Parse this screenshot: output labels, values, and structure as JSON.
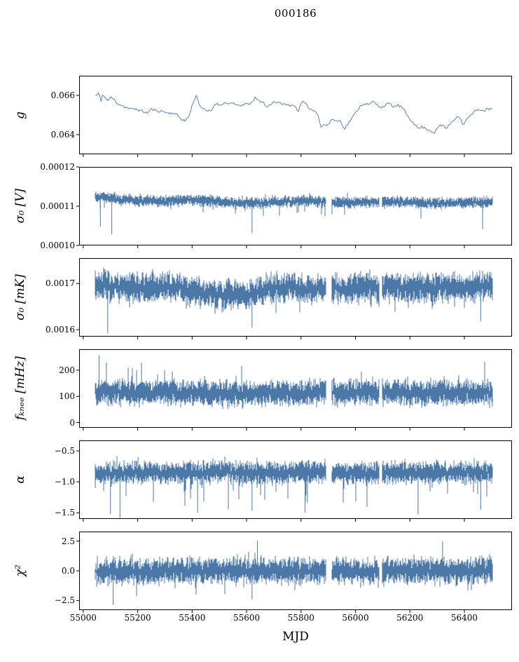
{
  "chart_data": {
    "type": "line",
    "title": "000186",
    "xlabel": "MJD",
    "line_color": "#4c78a8",
    "frame_color": "#000000",
    "grid": false,
    "legend": "none",
    "xlim": [
      54985,
      56575
    ],
    "data_range": [
      55045,
      56505
    ],
    "gaps": [
      [
        55893,
        55912
      ],
      [
        56088,
        56098
      ]
    ],
    "xticks": [
      {
        "v": 55000,
        "label": "55000"
      },
      {
        "v": 55200,
        "label": "55200"
      },
      {
        "v": 55400,
        "label": "55400"
      },
      {
        "v": 55600,
        "label": "55600"
      },
      {
        "v": 55800,
        "label": "55800"
      },
      {
        "v": 56000,
        "label": "56000"
      },
      {
        "v": 56200,
        "label": "56200"
      },
      {
        "v": 56400,
        "label": "56400"
      }
    ],
    "panels": [
      {
        "name": "g",
        "ylabel": "g",
        "style": "line",
        "ylim": [
          0.063,
          0.067
        ],
        "yticks": [
          {
            "v": 0.064,
            "label": "0.064"
          },
          {
            "v": 0.066,
            "label": "0.066"
          }
        ],
        "seed": 11,
        "jitter": 6e-05,
        "points": [
          [
            55052,
            0.066
          ],
          [
            55058,
            0.0662
          ],
          [
            55065,
            0.0656
          ],
          [
            55072,
            0.0661
          ],
          [
            55080,
            0.0659
          ],
          [
            55090,
            0.0657
          ],
          [
            55100,
            0.0659
          ],
          [
            55112,
            0.0658
          ],
          [
            55125,
            0.0656
          ],
          [
            55140,
            0.0655
          ],
          [
            55155,
            0.0654
          ],
          [
            55175,
            0.0653
          ],
          [
            55195,
            0.0653
          ],
          [
            55215,
            0.0652
          ],
          [
            55235,
            0.0651
          ],
          [
            55250,
            0.0653
          ],
          [
            55270,
            0.0652
          ],
          [
            55290,
            0.0652
          ],
          [
            55310,
            0.0651
          ],
          [
            55330,
            0.0651
          ],
          [
            55345,
            0.065
          ],
          [
            55360,
            0.0648
          ],
          [
            55375,
            0.0647
          ],
          [
            55390,
            0.065
          ],
          [
            55405,
            0.0657
          ],
          [
            55415,
            0.066
          ],
          [
            55428,
            0.0655
          ],
          [
            55440,
            0.0653
          ],
          [
            55455,
            0.0652
          ],
          [
            55470,
            0.0652
          ],
          [
            55485,
            0.0656
          ],
          [
            55500,
            0.0655
          ],
          [
            55515,
            0.0656
          ],
          [
            55530,
            0.0656
          ],
          [
            55545,
            0.0656
          ],
          [
            55560,
            0.0655
          ],
          [
            55575,
            0.0655
          ],
          [
            55590,
            0.0655
          ],
          [
            55605,
            0.0656
          ],
          [
            55620,
            0.0656
          ],
          [
            55633,
            0.0659
          ],
          [
            55645,
            0.0657
          ],
          [
            55660,
            0.0657
          ],
          [
            55672,
            0.0654
          ],
          [
            55685,
            0.0655
          ],
          [
            55700,
            0.0657
          ],
          [
            55715,
            0.0656
          ],
          [
            55730,
            0.0656
          ],
          [
            55745,
            0.0655
          ],
          [
            55760,
            0.0655
          ],
          [
            55775,
            0.0655
          ],
          [
            55790,
            0.0652
          ],
          [
            55805,
            0.0657
          ],
          [
            55820,
            0.0655
          ],
          [
            55835,
            0.0653
          ],
          [
            55850,
            0.0652
          ],
          [
            55862,
            0.0651
          ],
          [
            55872,
            0.0644
          ],
          [
            55885,
            0.0645
          ],
          [
            55900,
            0.0645
          ],
          [
            55915,
            0.0648
          ],
          [
            55930,
            0.0647
          ],
          [
            55945,
            0.0647
          ],
          [
            55960,
            0.0643
          ],
          [
            55975,
            0.0646
          ],
          [
            55990,
            0.0649
          ],
          [
            56005,
            0.0652
          ],
          [
            56020,
            0.0655
          ],
          [
            56035,
            0.0656
          ],
          [
            56050,
            0.0655
          ],
          [
            56065,
            0.0657
          ],
          [
            56080,
            0.0655
          ],
          [
            56095,
            0.0654
          ],
          [
            56110,
            0.0655
          ],
          [
            56125,
            0.0656
          ],
          [
            56140,
            0.0654
          ],
          [
            56155,
            0.0655
          ],
          [
            56170,
            0.0654
          ],
          [
            56185,
            0.0651
          ],
          [
            56200,
            0.0648
          ],
          [
            56215,
            0.0646
          ],
          [
            56230,
            0.0643
          ],
          [
            56245,
            0.0644
          ],
          [
            56260,
            0.0643
          ],
          [
            56275,
            0.0642
          ],
          [
            56290,
            0.0641
          ],
          [
            56305,
            0.0644
          ],
          [
            56320,
            0.0645
          ],
          [
            56335,
            0.0643
          ],
          [
            56350,
            0.0646
          ],
          [
            56365,
            0.0648
          ],
          [
            56380,
            0.065
          ],
          [
            56395,
            0.0645
          ],
          [
            56410,
            0.0648
          ],
          [
            56425,
            0.065
          ],
          [
            56440,
            0.0652
          ],
          [
            56455,
            0.0653
          ],
          [
            56470,
            0.0652
          ],
          [
            56485,
            0.0653
          ],
          [
            56500,
            0.0653
          ]
        ]
      },
      {
        "name": "sigma0_V",
        "ylabel": "σ₀ [V]",
        "style": "band",
        "ylim": [
          0.0001,
          0.00012
        ],
        "yticks": [
          {
            "v": 0.0001,
            "label": "0.00010"
          },
          {
            "v": 0.00011,
            "label": "0.00011"
          },
          {
            "v": 0.00012,
            "label": "0.00012"
          }
        ],
        "seed": 22,
        "half_amp": 1.4e-06,
        "tail_prob": 0.06,
        "tail_up": 1e-06,
        "tail_down": 2.8e-06,
        "baseline": [
          [
            55045,
            0.0001125
          ],
          [
            55120,
            0.0001118
          ],
          [
            55200,
            0.0001114
          ],
          [
            55300,
            0.0001112
          ],
          [
            55380,
            0.0001116
          ],
          [
            55470,
            0.0001113
          ],
          [
            55550,
            0.0001108
          ],
          [
            55650,
            0.0001108
          ],
          [
            55750,
            0.0001113
          ],
          [
            55850,
            0.0001114
          ],
          [
            55900,
            0.0001108
          ],
          [
            56000,
            0.0001109
          ],
          [
            56100,
            0.0001112
          ],
          [
            56200,
            0.000111
          ],
          [
            56300,
            0.0001107
          ],
          [
            56400,
            0.0001109
          ],
          [
            56505,
            0.000111
          ]
        ],
        "spikes": [
          [
            55063,
            0.0001048
          ],
          [
            55105,
            0.0001028
          ],
          [
            55620,
            0.0001032
          ],
          [
            56467,
            0.0001042
          ]
        ]
      },
      {
        "name": "sigma0_mK",
        "ylabel": "σ₀ [mK]",
        "style": "band",
        "ylim": [
          0.001585,
          0.001755
        ],
        "yticks": [
          {
            "v": 0.0016,
            "label": "0.0016"
          },
          {
            "v": 0.0017,
            "label": "0.0017"
          }
        ],
        "seed": 33,
        "half_amp": 3e-05,
        "tail_prob": 0.06,
        "tail_up": 1.6e-05,
        "tail_down": 2.8e-05,
        "baseline": [
          [
            55045,
            0.001695
          ],
          [
            55150,
            0.001692
          ],
          [
            55250,
            0.00169
          ],
          [
            55350,
            0.001692
          ],
          [
            55420,
            0.001682
          ],
          [
            55500,
            0.001676
          ],
          [
            55560,
            0.001674
          ],
          [
            55620,
            0.001678
          ],
          [
            55700,
            0.001692
          ],
          [
            55800,
            0.00169
          ],
          [
            55900,
            0.001688
          ],
          [
            56000,
            0.001692
          ],
          [
            56100,
            0.001694
          ],
          [
            56200,
            0.001691
          ],
          [
            56300,
            0.001693
          ],
          [
            56400,
            0.001694
          ],
          [
            56505,
            0.001692
          ]
        ],
        "spikes": [
          [
            55090,
            0.001592
          ],
          [
            55620,
            0.001604
          ],
          [
            56460,
            0.001618
          ]
        ]
      },
      {
        "name": "f_knee",
        "ylabel": "fₖₙₑₑ [mHz]",
        "style": "band",
        "ylim": [
          -20,
          280
        ],
        "yticks": [
          {
            "v": 0,
            "label": "0"
          },
          {
            "v": 100,
            "label": "100"
          },
          {
            "v": 200,
            "label": "200"
          }
        ],
        "seed": 44,
        "half_amp": 48,
        "tail_prob": 0.05,
        "tail_up": 70,
        "tail_down": 16,
        "baseline": [
          [
            55045,
            118
          ],
          [
            55600,
            112
          ],
          [
            56000,
            115
          ],
          [
            56505,
            116
          ]
        ],
        "spikes": [
          [
            55058,
            256
          ],
          [
            55085,
            230
          ]
        ]
      },
      {
        "name": "alpha",
        "ylabel": "α",
        "style": "band",
        "ylim": [
          -1.6,
          -0.33
        ],
        "yticks": [
          {
            "v": -0.5,
            "label": "−0.5"
          },
          {
            "v": -1.0,
            "label": "−1.0"
          },
          {
            "v": -1.5,
            "label": "−1.5"
          }
        ],
        "seed": 55,
        "half_amp": 0.17,
        "tail_prob": 0.08,
        "tail_up": 0.1,
        "tail_down": 0.42,
        "baseline": [
          [
            55045,
            -0.86
          ],
          [
            55600,
            -0.85
          ],
          [
            56000,
            -0.86
          ],
          [
            56505,
            -0.85
          ]
        ],
        "spikes": [
          [
            55100,
            -1.52
          ],
          [
            55135,
            -1.58
          ],
          [
            55420,
            -1.5
          ],
          [
            55620,
            -1.47
          ],
          [
            55815,
            -1.5
          ],
          [
            56230,
            -1.53
          ],
          [
            56460,
            -1.45
          ]
        ]
      },
      {
        "name": "chi2",
        "ylabel": "χ²",
        "style": "band",
        "ylim": [
          -3.3,
          3.3
        ],
        "yticks": [
          {
            "v": -2.5,
            "label": "−2.5"
          },
          {
            "v": 0.0,
            "label": "0.0"
          },
          {
            "v": 2.5,
            "label": "2.5"
          }
        ],
        "seed": 66,
        "half_amp": 1.05,
        "tail_prob": 0.05,
        "tail_up": 0.85,
        "tail_down": 0.85,
        "baseline": [
          [
            55045,
            0
          ],
          [
            56505,
            0
          ]
        ],
        "spikes": [
          [
            55110,
            -2.85
          ],
          [
            55620,
            -2.4
          ],
          [
            55640,
            2.55
          ],
          [
            56320,
            2.5
          ]
        ]
      }
    ]
  }
}
